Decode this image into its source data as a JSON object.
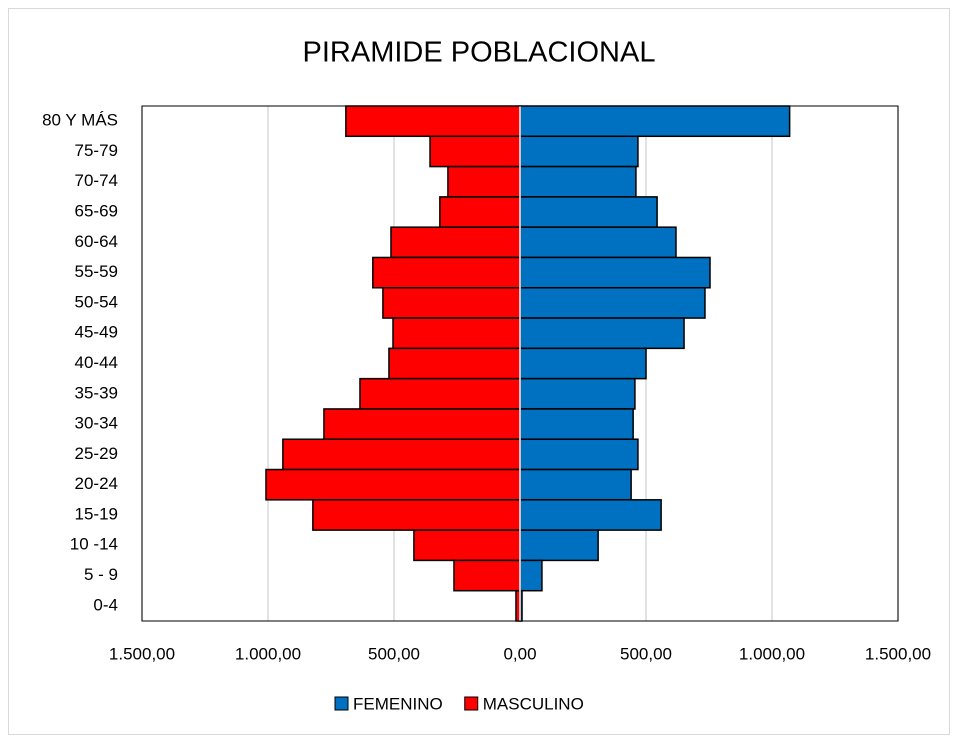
{
  "chart_data": {
    "type": "pyramid",
    "title": "PIRAMIDE POBLACIONAL",
    "categories": [
      "80 Y MÁS",
      "75-79",
      "70-74",
      "65-69",
      "60-64",
      "55-59",
      "50-54",
      "45-49",
      "40-44",
      "35-39",
      "30-34",
      "25-29",
      "20-24",
      "15-19",
      "10 -14",
      "5 - 9",
      "0-4"
    ],
    "series": [
      {
        "name": "FEMENINO",
        "color": "#0070c0",
        "values": [
          1070,
          468,
          460,
          544,
          619,
          754,
          734,
          651,
          500,
          456,
          449,
          468,
          441,
          560,
          310,
          87,
          8
        ]
      },
      {
        "name": "MASCULINO",
        "color": "#ff0000",
        "values": [
          -691,
          -357,
          -286,
          -318,
          -512,
          -584,
          -544,
          -504,
          -520,
          -635,
          -778,
          -941,
          -1008,
          -822,
          -421,
          -262,
          -16
        ]
      }
    ],
    "xlim": [
      -1500,
      1500
    ],
    "xticks": [
      {
        "value": -1500,
        "label": "1.500,00"
      },
      {
        "value": -1000,
        "label": "1.000,00"
      },
      {
        "value": -500,
        "label": "500,00"
      },
      {
        "value": 0,
        "label": "0,00"
      },
      {
        "value": 500,
        "label": "500,00"
      },
      {
        "value": 1000,
        "label": "1.000,00"
      },
      {
        "value": 1500,
        "label": "1.500,00"
      }
    ],
    "grid": true,
    "legend": "bottom"
  }
}
